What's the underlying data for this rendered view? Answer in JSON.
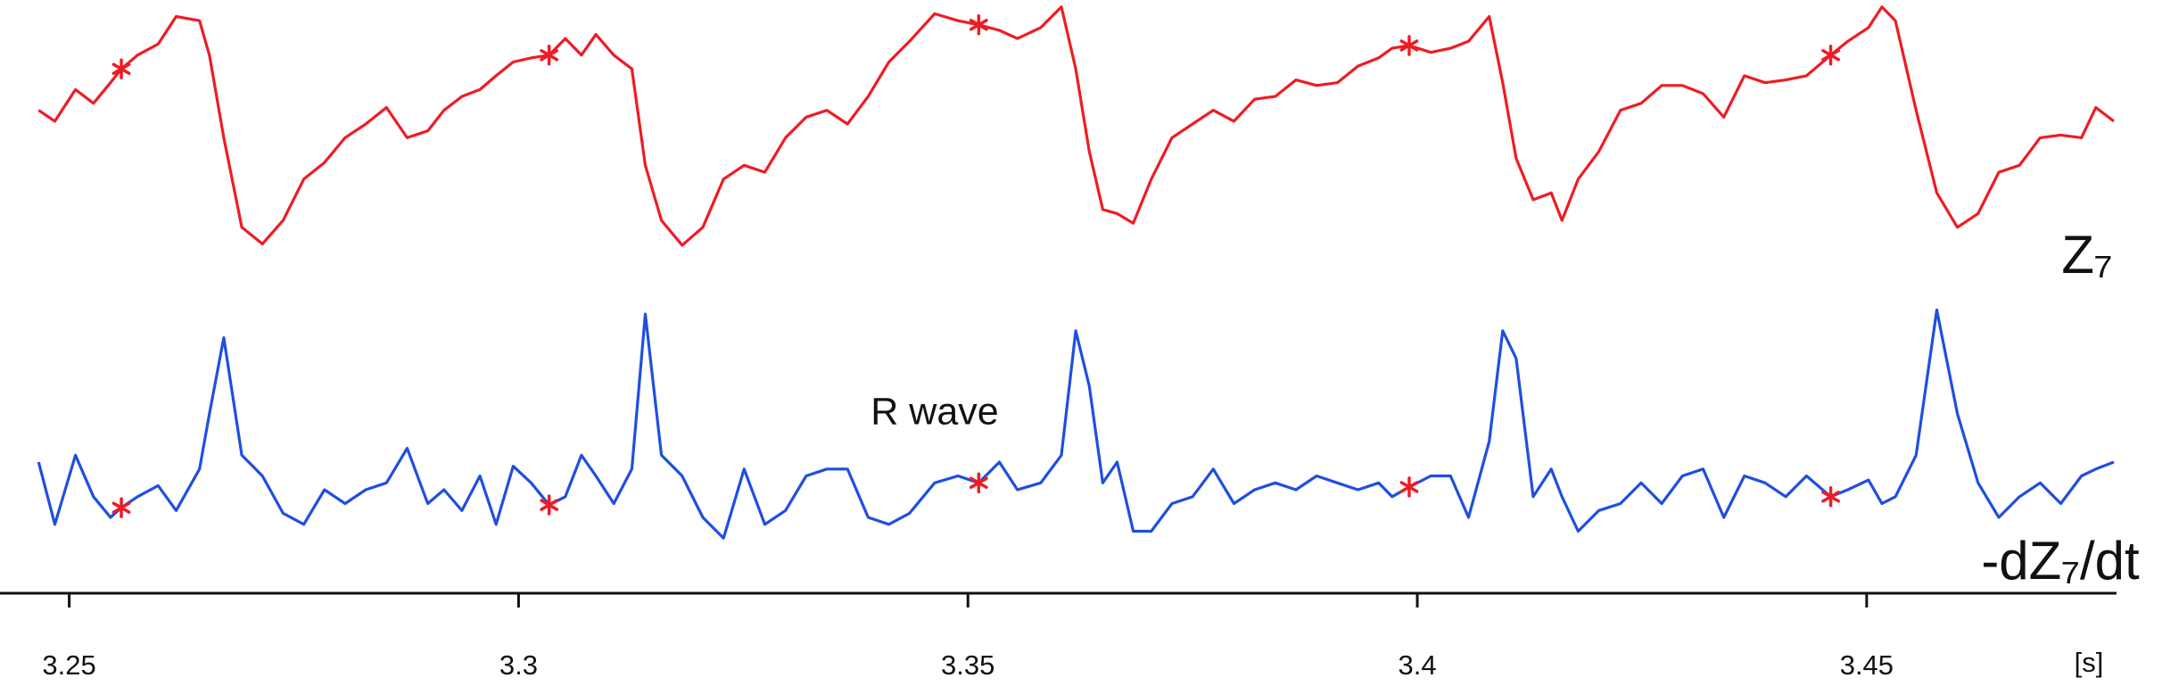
{
  "chart_data": {
    "type": "line",
    "annotation": "R wave",
    "x_unit_label": "[s]",
    "xlim": [
      3.2423,
      3.4778
    ],
    "xticks": [
      3.25,
      3.3,
      3.35,
      3.4,
      3.45
    ],
    "x": [
      3.2466,
      3.2484,
      3.2507,
      3.2527,
      3.2546,
      3.2558,
      3.2576,
      3.2599,
      3.2619,
      3.2645,
      3.2656,
      3.2672,
      3.2692,
      3.2715,
      3.2738,
      3.2761,
      3.2784,
      3.2807,
      3.283,
      3.2853,
      3.2876,
      3.2899,
      3.2917,
      3.2937,
      3.2957,
      3.2975,
      3.2994,
      3.3014,
      3.3034,
      3.3052,
      3.307,
      3.3086,
      3.3106,
      3.3126,
      3.3141,
      3.3159,
      3.3182,
      3.3205,
      3.3228,
      3.3251,
      3.3274,
      3.3297,
      3.332,
      3.3343,
      3.3366,
      3.3389,
      3.3412,
      3.3435,
      3.3463,
      3.3489,
      3.3512,
      3.3535,
      3.3555,
      3.3581,
      3.3604,
      3.362,
      3.3635,
      3.365,
      3.3666,
      3.3684,
      3.3704,
      3.3727,
      3.375,
      3.3773,
      3.3796,
      3.3819,
      3.3842,
      3.3865,
      3.3888,
      3.3911,
      3.3934,
      3.3957,
      3.3972,
      3.3991,
      3.4015,
      3.4037,
      3.4057,
      3.408,
      3.4095,
      3.411,
      3.4129,
      3.4149,
      3.4161,
      3.4179,
      3.4202,
      3.4226,
      3.4249,
      3.4272,
      3.4295,
      3.4318,
      3.4341,
      3.4364,
      3.4387,
      3.441,
      3.4433,
      3.446,
      3.4479,
      3.4502,
      3.4517,
      3.4532,
      3.4555,
      3.4578,
      3.4601,
      3.4624,
      3.4647,
      3.467,
      3.4693,
      3.4716,
      3.4739,
      3.4755,
      3.4775
    ],
    "series": [
      {
        "name": "Z₇",
        "color": "#ee1c24",
        "ylim": [
          0,
          180
        ],
        "values": [
          100,
          92,
          115,
          105,
          120,
          130,
          140,
          148,
          168,
          165,
          140,
          80,
          15,
          3,
          20,
          50,
          62,
          80,
          90,
          102,
          80,
          85,
          100,
          110,
          115,
          125,
          135,
          138,
          140,
          152,
          140,
          155,
          140,
          130,
          60,
          20,
          2,
          15,
          50,
          60,
          55,
          80,
          95,
          100,
          90,
          110,
          135,
          150,
          170,
          165,
          162,
          158,
          152,
          160,
          175,
          130,
          70,
          28,
          25,
          18,
          50,
          80,
          90,
          100,
          92,
          108,
          110,
          122,
          118,
          120,
          132,
          138,
          145,
          147,
          142,
          145,
          150,
          168,
          120,
          65,
          35,
          40,
          20,
          50,
          70,
          100,
          105,
          118,
          118,
          112,
          95,
          125,
          120,
          122,
          125,
          140,
          150,
          160,
          175,
          165,
          100,
          40,
          15,
          25,
          55,
          60,
          80,
          82,
          80,
          102,
          92
        ],
        "markers": {
          "color": "#ee1c24",
          "x": [
            3.2558,
            3.3034,
            3.3512,
            3.3991,
            3.446
          ],
          "values": [
            130,
            140,
            162,
            147,
            140
          ]
        }
      },
      {
        "name": "-dZ₇/dt",
        "color": "#1f4fe0",
        "ylim": [
          0,
          180
        ],
        "values": [
          60,
          15,
          65,
          35,
          20,
          27,
          35,
          43,
          25,
          55,
          95,
          150,
          65,
          50,
          23,
          15,
          40,
          30,
          40,
          45,
          70,
          30,
          40,
          25,
          50,
          15,
          57,
          45,
          29,
          35,
          65,
          50,
          30,
          55,
          167,
          65,
          50,
          20,
          5,
          55,
          15,
          25,
          50,
          55,
          55,
          20,
          15,
          23,
          45,
          50,
          45,
          60,
          40,
          45,
          65,
          155,
          115,
          45,
          60,
          10,
          10,
          30,
          35,
          55,
          30,
          40,
          45,
          40,
          50,
          45,
          40,
          45,
          35,
          42,
          50,
          50,
          20,
          75,
          155,
          135,
          35,
          55,
          35,
          10,
          25,
          30,
          45,
          30,
          50,
          55,
          20,
          50,
          45,
          35,
          50,
          35,
          40,
          47,
          30,
          35,
          65,
          170,
          95,
          45,
          20,
          35,
          45,
          30,
          50,
          55,
          60
        ],
        "markers": {
          "color": "#ee1c24",
          "x": [
            3.2558,
            3.3034,
            3.3512,
            3.3991,
            3.446
          ],
          "values": [
            27,
            29,
            45,
            42,
            35
          ]
        }
      }
    ]
  }
}
